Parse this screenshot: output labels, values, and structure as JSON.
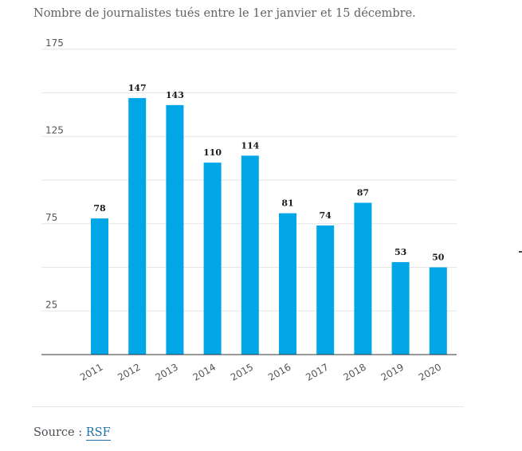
{
  "chart_title": "Nombre de journalistes tués entre le 1er janvier et 15 décembre.",
  "source": {
    "label": "Source : ",
    "link_text": "RSF"
  },
  "colors": {
    "bar": "#00a6e6",
    "grid": "#e6e6e6",
    "axis": "#333333"
  },
  "chart_data": {
    "type": "bar",
    "title": "Nombre de journalistes tués entre le 1er janvier et 15 décembre.",
    "categories": [
      "2011",
      "2012",
      "2013",
      "2014",
      "2015",
      "2016",
      "2017",
      "2018",
      "2019",
      "2020"
    ],
    "values": [
      78,
      147,
      143,
      110,
      114,
      81,
      74,
      87,
      53,
      50
    ],
    "data_labels": [
      "78",
      "147",
      "143",
      "110",
      "114",
      "81",
      "74",
      "87",
      "53",
      "50"
    ],
    "xlabel": "",
    "ylabel": "",
    "ylim": [
      0,
      175
    ],
    "yticks": [
      25,
      75,
      125,
      175
    ],
    "ytick_labels": [
      "25",
      "75",
      "125",
      "175"
    ],
    "grid": true,
    "legend": "none"
  }
}
